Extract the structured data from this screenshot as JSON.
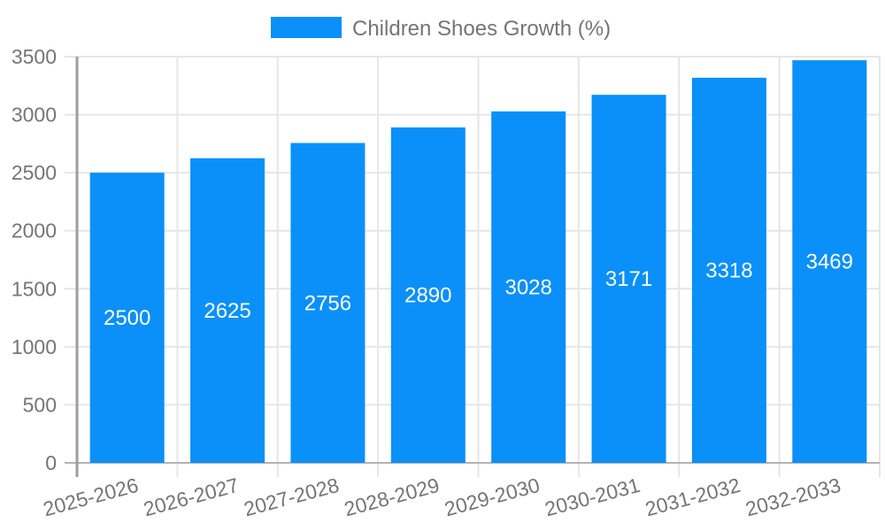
{
  "page": {
    "background": "#ffffff"
  },
  "chart_data": {
    "type": "bar",
    "title": "Children Shoes Growth (%)",
    "legend": {
      "position": "top",
      "entries": [
        "Children Shoes Growth (%)"
      ]
    },
    "categories": [
      "2025-2026",
      "2026-2027",
      "2027-2028",
      "2028-2029",
      "2029-2030",
      "2030-2031",
      "2031-2032",
      "2032-2033"
    ],
    "series": [
      {
        "name": "Children Shoes Growth (%)",
        "color": "#0a90f8",
        "values": [
          2500,
          2625,
          2756,
          2890,
          3028,
          3171,
          3318,
          3469
        ]
      }
    ],
    "value_labels_on_bars": true,
    "xlabel": "",
    "ylabel": "",
    "ylim": [
      0,
      3500
    ],
    "yticks": [
      0,
      500,
      1000,
      1500,
      2000,
      2500,
      3000,
      3500
    ],
    "x_tick_label_rotation_deg": -15,
    "grid": true,
    "colors": {
      "bar": "#0a90f8",
      "bar_label_text": "#ffffff",
      "axis_text": "#757575",
      "legend_text": "#757575",
      "gridline": "#e6e6e6",
      "y_axis_line": "#9e9e9e",
      "baseline": "#b3b3b3",
      "background": "#ffffff"
    }
  }
}
